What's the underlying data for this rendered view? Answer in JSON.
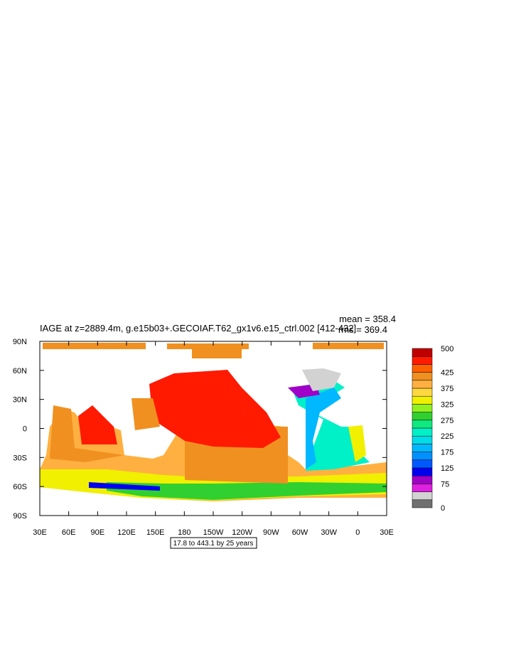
{
  "title": "IAGE at z=2889.4m, g.e15b03+.GECOIAF.T62_gx1v6.e15_ctrl.002 [412-432]",
  "stats": {
    "mean": "mean = 358.4",
    "rms": "rms = 369.4"
  },
  "x_labels": [
    "30E",
    "60E",
    "90E",
    "120E",
    "150E",
    "180",
    "150W",
    "120W",
    "90W",
    "60W",
    "30W",
    "0",
    "30E"
  ],
  "y_labels": [
    "90N",
    "60N",
    "30N",
    "0",
    "30S",
    "60S",
    "90S"
  ],
  "contour_info": "17.8 to 443.1 by 25 years",
  "colorbar": {
    "labels": [
      500,
      425,
      375,
      325,
      275,
      225,
      175,
      125,
      75,
      0
    ],
    "colors": [
      "#707070",
      "#d2d2d2",
      "#e020e0",
      "#a000c8",
      "#0000f0",
      "#0058ff",
      "#0090ff",
      "#00b8ff",
      "#00dce8",
      "#00f0c8",
      "#10e880",
      "#30d030",
      "#90f020",
      "#f0f000",
      "#ffd840",
      "#ffb040",
      "#f09020",
      "#ff6000",
      "#ff1a00",
      "#c00000"
    ],
    "min": 0,
    "max": 500
  }
}
